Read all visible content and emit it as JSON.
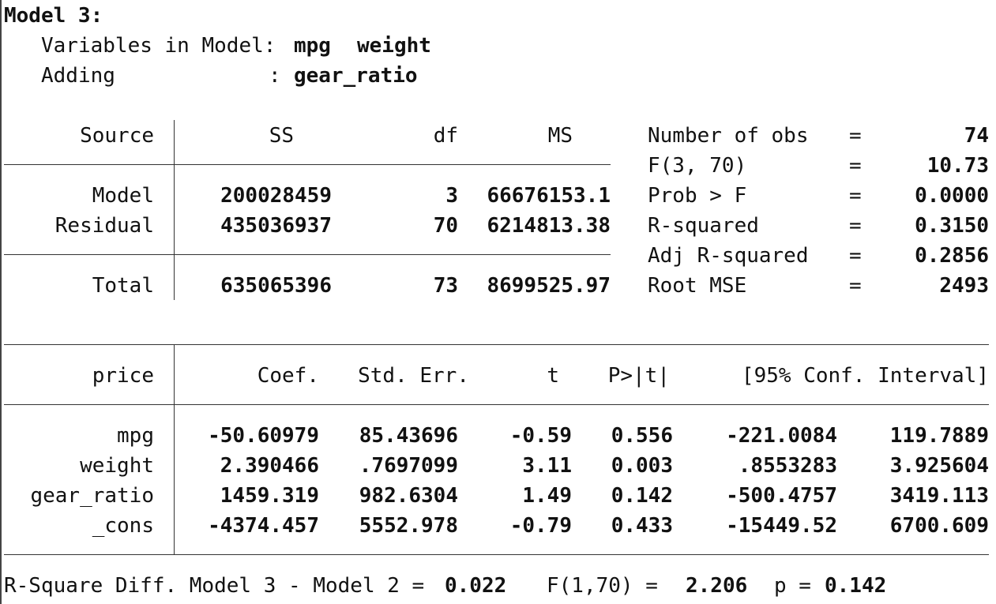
{
  "model_title": "Model 3:",
  "variables_label": "Variables in Model:",
  "variables": [
    "mpg",
    "weight"
  ],
  "adding_label": "Adding",
  "adding_sep": ":",
  "adding_var": "gear_ratio",
  "anova": {
    "headers": {
      "source": "Source",
      "ss": "SS",
      "df": "df",
      "ms": "MS"
    },
    "rows": [
      {
        "source": "Model",
        "ss": "200028459",
        "df": "3",
        "ms": "66676153.1"
      },
      {
        "source": "Residual",
        "ss": "435036937",
        "df": "70",
        "ms": "6214813.38"
      }
    ],
    "total": {
      "source": "Total",
      "ss": "635065396",
      "df": "73",
      "ms": "8699525.97"
    }
  },
  "stats": [
    {
      "label": "Number of obs",
      "eq": "=",
      "value": "74"
    },
    {
      "label": "F(3, 70)",
      "eq": "=",
      "value": "10.73"
    },
    {
      "label": "Prob > F",
      "eq": "=",
      "value": "0.0000"
    },
    {
      "label": "R-squared",
      "eq": "=",
      "value": "0.3150"
    },
    {
      "label": "Adj R-squared",
      "eq": "=",
      "value": "0.2856"
    },
    {
      "label": "Root MSE",
      "eq": "=",
      "value": "2493"
    }
  ],
  "coef": {
    "headers": {
      "var": "price",
      "coef": "Coef.",
      "se": "Std. Err.",
      "t": "t",
      "p": "P>|t|",
      "ci": "[95% Conf. Interval]"
    },
    "rows": [
      {
        "var": "mpg",
        "coef": "-50.60979",
        "se": "85.43696",
        "t": "-0.59",
        "p": "0.556",
        "lo": "-221.0084",
        "hi": "119.7889"
      },
      {
        "var": "weight",
        "coef": "2.390466",
        "se": ".7697099",
        "t": "3.11",
        "p": "0.003",
        "lo": ".8553283",
        "hi": "3.925604"
      },
      {
        "var": "gear_ratio",
        "coef": "1459.319",
        "se": "982.6304",
        "t": "1.49",
        "p": "0.142",
        "lo": "-500.4757",
        "hi": "3419.113"
      },
      {
        "var": "_cons",
        "coef": "-4374.457",
        "se": "5552.978",
        "t": "-0.79",
        "p": "0.433",
        "lo": "-15449.52",
        "hi": "6700.609"
      }
    ]
  },
  "footer": {
    "diff_label": "R-Square Diff. Model 3 - Model 2 =",
    "diff_value": "0.022",
    "f_label": "F(1,70) =",
    "f_value": "2.206",
    "p_label": "p =",
    "p_value": "0.142"
  }
}
